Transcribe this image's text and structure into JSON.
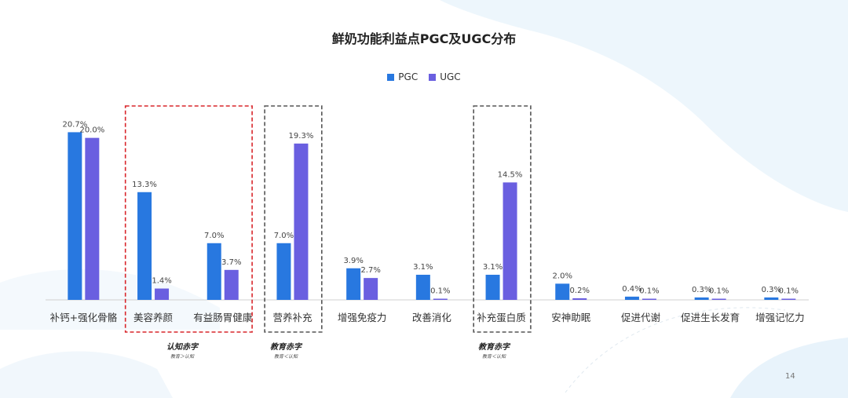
{
  "chart_data": {
    "type": "bar",
    "title": "鲜奶功能利益点PGC及UGC分布",
    "categories": [
      "补钙+强化骨骼",
      "美容养颜",
      "有益肠胃健康",
      "营养补充",
      "增强免疫力",
      "改善消化",
      "补充蛋白质",
      "安神助眠",
      "促进代谢",
      "促进生长发育",
      "增强记忆力"
    ],
    "series": [
      {
        "name": "PGC",
        "color": "#2878e0",
        "values": [
          20.7,
          13.3,
          7.0,
          7.0,
          3.9,
          3.1,
          3.1,
          2.0,
          0.4,
          0.3,
          0.3
        ],
        "labels": [
          "20.7%",
          "13.3%",
          "7.0%",
          "7.0%",
          "3.9%",
          "3.1%",
          "3.1%",
          "2.0%",
          "0.4%",
          "0.3%",
          "0.3%"
        ]
      },
      {
        "name": "UGC",
        "color": "#6a5fe0",
        "values": [
          20.0,
          1.4,
          3.7,
          19.3,
          2.7,
          0.1,
          14.5,
          0.2,
          0.1,
          0.1,
          0.1
        ],
        "labels": [
          "20.0%",
          "1.4%",
          "3.7%",
          "19.3%",
          "2.7%",
          "0.1%",
          "14.5%",
          "0.2%",
          "0.1%",
          "0.1%",
          "0.1%"
        ]
      }
    ],
    "legend_position": "top-center",
    "grid": false,
    "ylim": [
      0,
      22
    ],
    "annotations": [
      {
        "label": "认知赤字",
        "sub": "教育＞认知",
        "categories": [
          "美容养颜",
          "有益肠胃健康"
        ],
        "border_color": "#d9262b"
      },
      {
        "label": "教育赤字",
        "sub": "教育＜认知",
        "categories": [
          "营养补充"
        ],
        "border_color": "#555555"
      },
      {
        "label": "教育赤字",
        "sub": "教育＜认知",
        "categories": [
          "补充蛋白质"
        ],
        "border_color": "#555555"
      }
    ]
  },
  "page": {
    "number": "14"
  }
}
